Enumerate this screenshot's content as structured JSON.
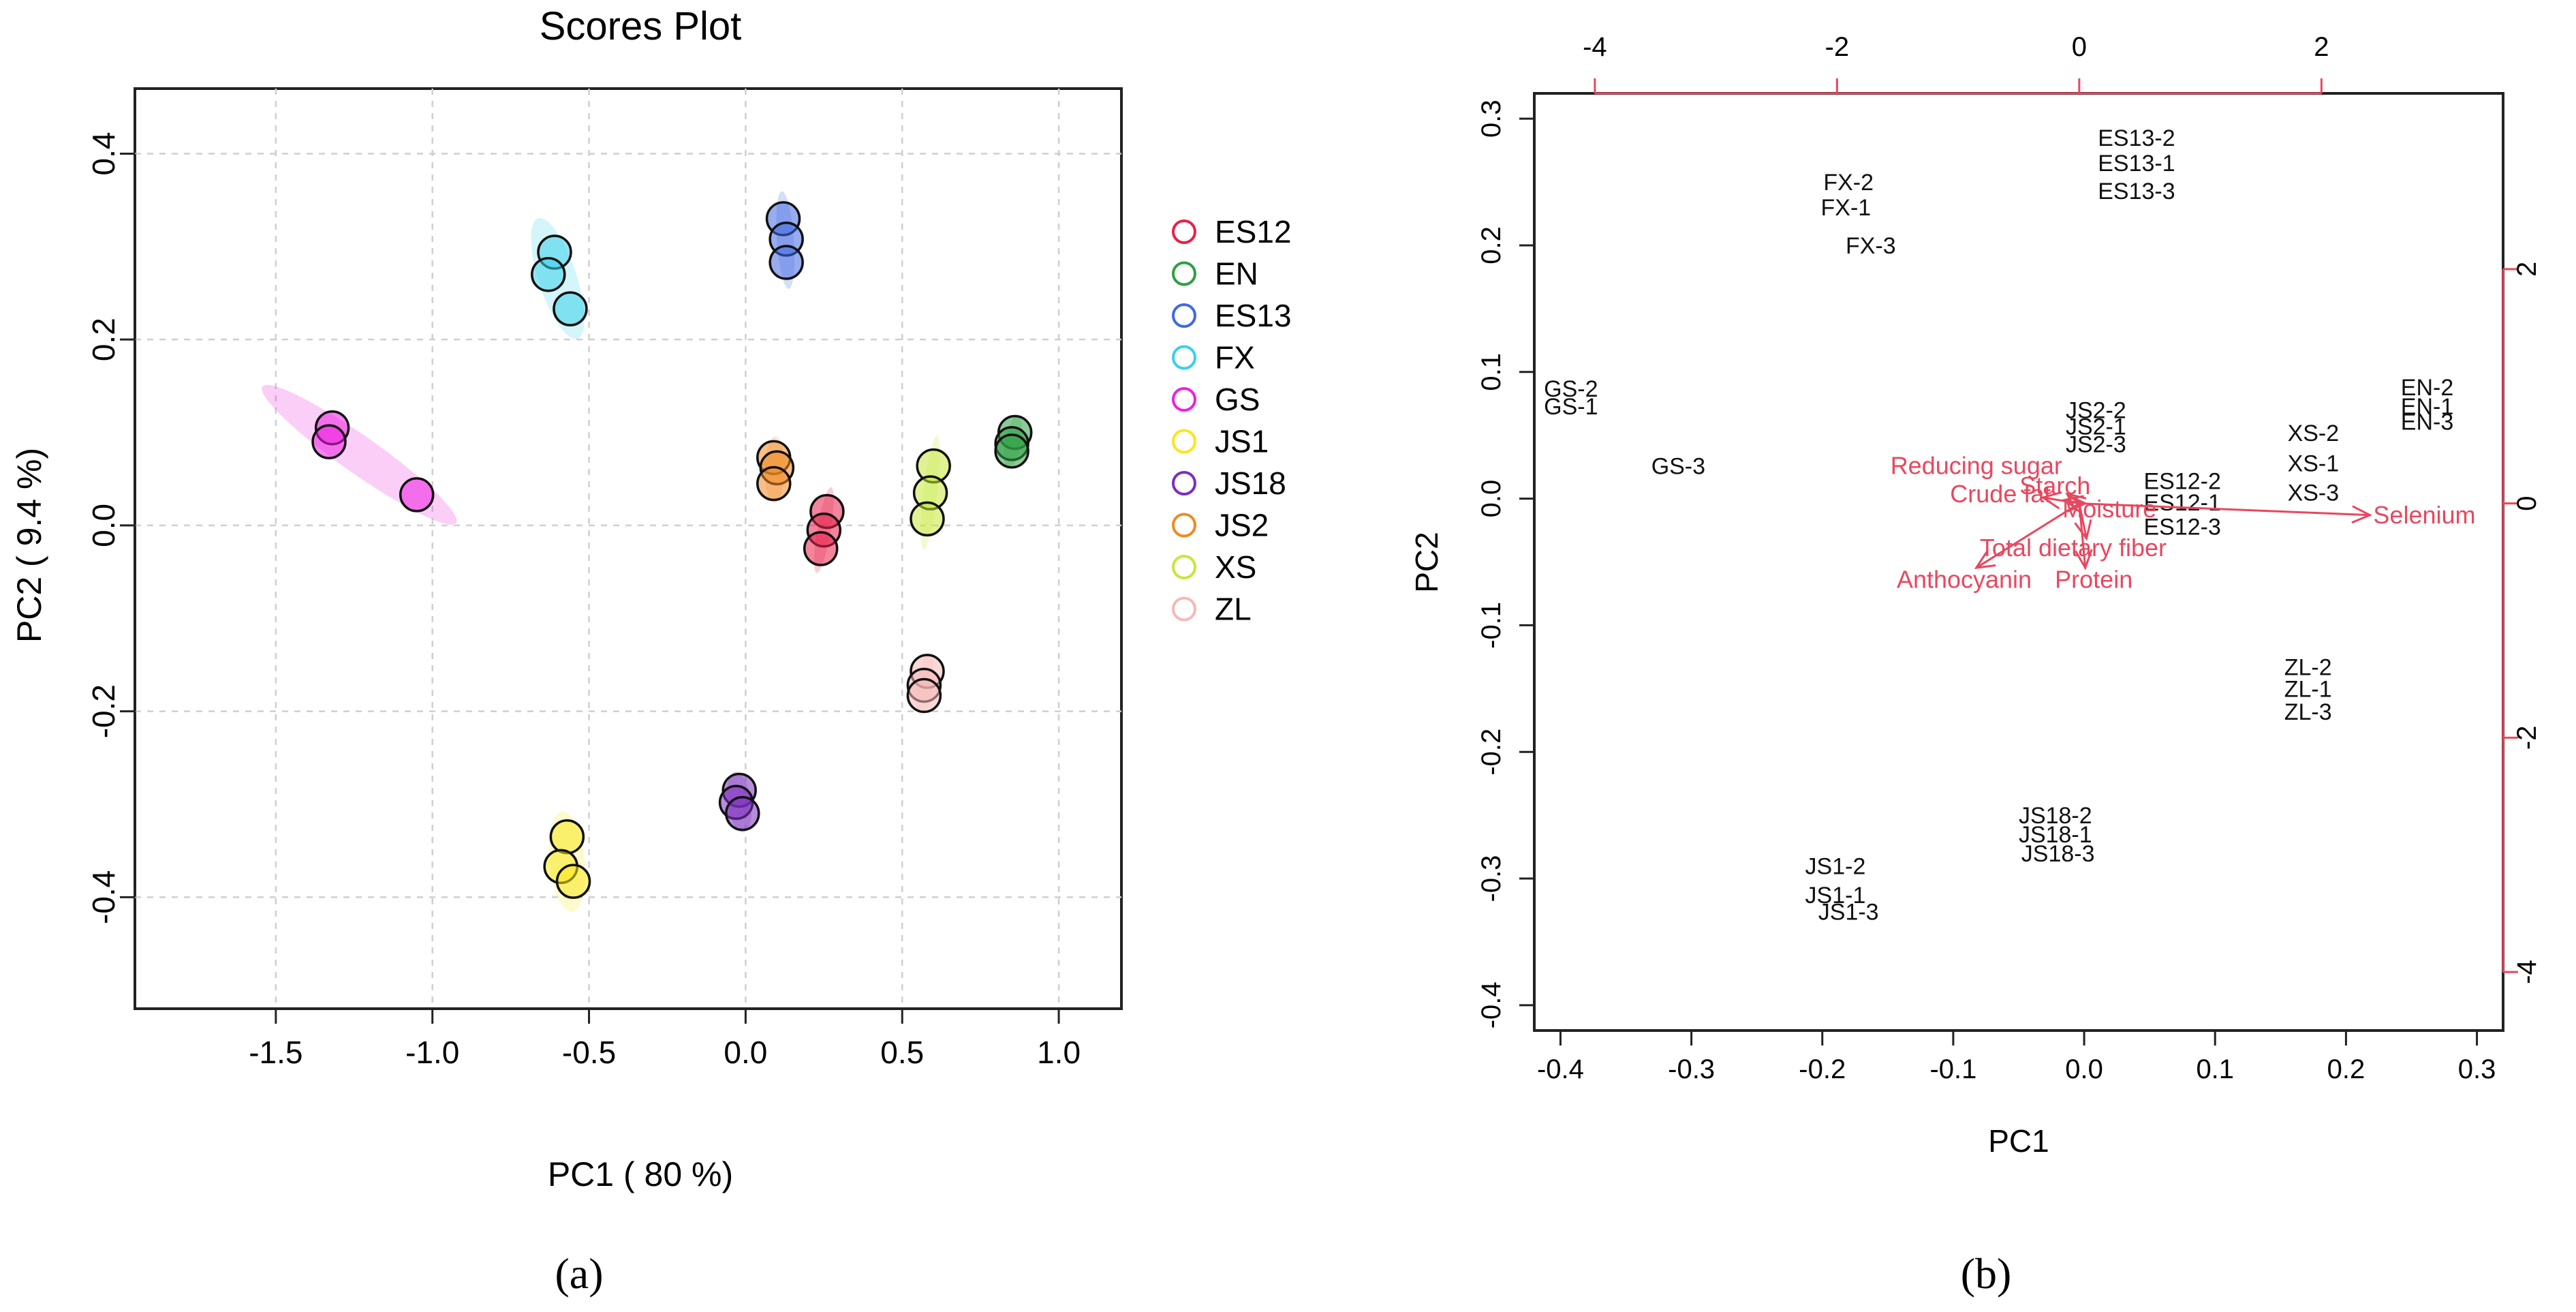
{
  "chart_data": [
    {
      "type": "scatter",
      "panel_label": "(a)",
      "title": "Scores Plot",
      "xlabel": "PC1 ( 80 %)",
      "ylabel": "PC2 ( 9.4 %)",
      "xlim": [
        -1.95,
        1.2
      ],
      "ylim": [
        -0.52,
        0.47
      ],
      "x_ticks": [
        -1.5,
        -1.0,
        -0.5,
        0.0,
        0.5,
        1.0
      ],
      "x_tick_labels": [
        "-1.5",
        "-1.0",
        "-0.5",
        "0.0",
        "0.5",
        "1.0"
      ],
      "y_ticks": [
        -0.4,
        -0.2,
        0.0,
        0.2,
        0.4
      ],
      "y_tick_labels": [
        "-0.4",
        "-0.2",
        "0.0",
        "0.2",
        "0.4"
      ],
      "grid": true,
      "legend_position": "right",
      "series": [
        {
          "name": "ES12",
          "color": "#e8204a",
          "points": [
            [
              0.26,
              0.015
            ],
            [
              0.25,
              -0.005
            ],
            [
              0.24,
              -0.025
            ]
          ]
        },
        {
          "name": "EN",
          "color": "#2ea043",
          "points": [
            [
              0.86,
              0.1
            ],
            [
              0.85,
              0.088
            ],
            [
              0.85,
              0.08
            ]
          ]
        },
        {
          "name": "ES13",
          "color": "#4169e1",
          "points": [
            [
              0.12,
              0.33
            ],
            [
              0.13,
              0.308
            ],
            [
              0.13,
              0.283
            ]
          ]
        },
        {
          "name": "FX",
          "color": "#3ad0ea",
          "points": [
            [
              -0.61,
              0.294
            ],
            [
              -0.63,
              0.27
            ],
            [
              -0.56,
              0.233
            ]
          ]
        },
        {
          "name": "GS",
          "color": "#ee1fe1",
          "points": [
            [
              -1.32,
              0.105
            ],
            [
              -1.33,
              0.09
            ],
            [
              -1.05,
              0.033
            ]
          ]
        },
        {
          "name": "JS1",
          "color": "#f8e71c",
          "points": [
            [
              -0.57,
              -0.335
            ],
            [
              -0.59,
              -0.367
            ],
            [
              -0.55,
              -0.383
            ]
          ]
        },
        {
          "name": "JS18",
          "color": "#7b2fbe",
          "points": [
            [
              -0.02,
              -0.285
            ],
            [
              -0.03,
              -0.298
            ],
            [
              -0.01,
              -0.31
            ]
          ]
        },
        {
          "name": "JS2",
          "color": "#f08a24",
          "points": [
            [
              0.09,
              0.073
            ],
            [
              0.1,
              0.062
            ],
            [
              0.09,
              0.045
            ]
          ]
        },
        {
          "name": "XS",
          "color": "#c6e83a",
          "points": [
            [
              0.6,
              0.064
            ],
            [
              0.59,
              0.035
            ],
            [
              0.58,
              0.007
            ]
          ]
        },
        {
          "name": "ZL",
          "color": "#f6b8b8",
          "points": [
            [
              0.58,
              -0.157
            ],
            [
              0.57,
              -0.172
            ],
            [
              0.57,
              -0.183
            ]
          ]
        }
      ]
    },
    {
      "type": "scatter",
      "panel_label": "(b)",
      "title": "",
      "xlabel": "PC1",
      "ylabel": "PC2",
      "xlim": [
        -0.42,
        0.32
      ],
      "ylim": [
        -0.42,
        0.32
      ],
      "x_ticks": [
        -0.4,
        -0.3,
        -0.2,
        -0.1,
        0.0,
        0.1,
        0.2,
        0.3
      ],
      "x_tick_labels": [
        "-0.4",
        "-0.3",
        "-0.2",
        "-0.1",
        "0.0",
        "0.1",
        "0.2",
        "0.3"
      ],
      "y_ticks": [
        -0.4,
        -0.3,
        -0.2,
        -0.1,
        0.0,
        0.1,
        0.2,
        0.3
      ],
      "y_tick_labels": [
        "-0.4",
        "-0.3",
        "-0.2",
        "-0.1",
        "0.0",
        "0.1",
        "0.2",
        "0.3"
      ],
      "top_axis": {
        "lim": [
          -4.5,
          3.5
        ],
        "ticks": [
          -4,
          -2,
          0,
          2
        ],
        "labels": [
          "-4",
          "-2",
          "0",
          "2"
        ],
        "color": "#e8475f"
      },
      "right_axis": {
        "lim": [
          -4.5,
          3.5
        ],
        "ticks": [
          2,
          0,
          -2,
          -4
        ],
        "labels": [
          "2",
          "0",
          "-2",
          "-4"
        ],
        "color": "#e8475f"
      },
      "grid": false,
      "sample_labels": [
        {
          "label": "ES13-2",
          "x": 0.04,
          "y": 0.285
        },
        {
          "label": "ES13-1",
          "x": 0.04,
          "y": 0.265
        },
        {
          "label": "ES13-3",
          "x": 0.04,
          "y": 0.243
        },
        {
          "label": "FX-2",
          "x": -0.18,
          "y": 0.25
        },
        {
          "label": "FX-1",
          "x": -0.182,
          "y": 0.23
        },
        {
          "label": "FX-3",
          "x": -0.163,
          "y": 0.2
        },
        {
          "label": "GS-2",
          "x": -0.392,
          "y": 0.087
        },
        {
          "label": "GS-1",
          "x": -0.392,
          "y": 0.073
        },
        {
          "label": "GS-3",
          "x": -0.31,
          "y": 0.026
        },
        {
          "label": "JS2-2",
          "x": 0.009,
          "y": 0.07
        },
        {
          "label": "JS2-1",
          "x": 0.009,
          "y": 0.057
        },
        {
          "label": "JS2-3",
          "x": 0.009,
          "y": 0.043
        },
        {
          "label": "EN-2",
          "x": 0.262,
          "y": 0.088
        },
        {
          "label": "EN-1",
          "x": 0.262,
          "y": 0.073
        },
        {
          "label": "EN-3",
          "x": 0.262,
          "y": 0.061
        },
        {
          "label": "XS-2",
          "x": 0.175,
          "y": 0.052
        },
        {
          "label": "XS-1",
          "x": 0.175,
          "y": 0.028
        },
        {
          "label": "XS-3",
          "x": 0.175,
          "y": 0.005
        },
        {
          "label": "ES12-2",
          "x": 0.075,
          "y": 0.014
        },
        {
          "label": "ES12-1",
          "x": 0.075,
          "y": -0.003
        },
        {
          "label": "ES12-3",
          "x": 0.075,
          "y": -0.022
        },
        {
          "label": "ZL-2",
          "x": 0.171,
          "y": -0.133
        },
        {
          "label": "ZL-1",
          "x": 0.171,
          "y": -0.15
        },
        {
          "label": "ZL-3",
          "x": 0.171,
          "y": -0.168
        },
        {
          "label": "JS18-2",
          "x": -0.022,
          "y": -0.25
        },
        {
          "label": "JS18-1",
          "x": -0.022,
          "y": -0.265
        },
        {
          "label": "JS18-3",
          "x": -0.02,
          "y": -0.28
        },
        {
          "label": "JS1-2",
          "x": -0.19,
          "y": -0.29
        },
        {
          "label": "JS1-1",
          "x": -0.19,
          "y": -0.313
        },
        {
          "label": "JS1-3",
          "x": -0.18,
          "y": -0.326
        }
      ],
      "loadings": [
        {
          "name": "Selenium",
          "x": 2.4,
          "y": -0.1,
          "label_x": 2.85,
          "label_y": -0.1
        },
        {
          "name": "Reducing sugar",
          "x": -0.3,
          "y": 0.05,
          "label_x": -0.85,
          "label_y": 0.32
        },
        {
          "name": "Starch",
          "x": -0.1,
          "y": 0.08,
          "label_x": -0.2,
          "label_y": 0.15
        },
        {
          "name": "Crude fat",
          "x": -0.12,
          "y": 0.03,
          "label_x": -0.65,
          "label_y": 0.08
        },
        {
          "name": "Moisture",
          "x": 0.05,
          "y": 0.0,
          "label_x": 0.25,
          "label_y": -0.05
        },
        {
          "name": "Total dietary fiber",
          "x": 0.06,
          "y": -0.3,
          "label_x": -0.05,
          "label_y": -0.38
        },
        {
          "name": "Protein",
          "x": 0.05,
          "y": -0.55,
          "label_x": 0.12,
          "label_y": -0.65
        },
        {
          "name": "Anthocyanin",
          "x": -0.85,
          "y": -0.55,
          "label_x": -0.95,
          "label_y": -0.65
        }
      ],
      "loading_color": "#e8475f"
    }
  ]
}
